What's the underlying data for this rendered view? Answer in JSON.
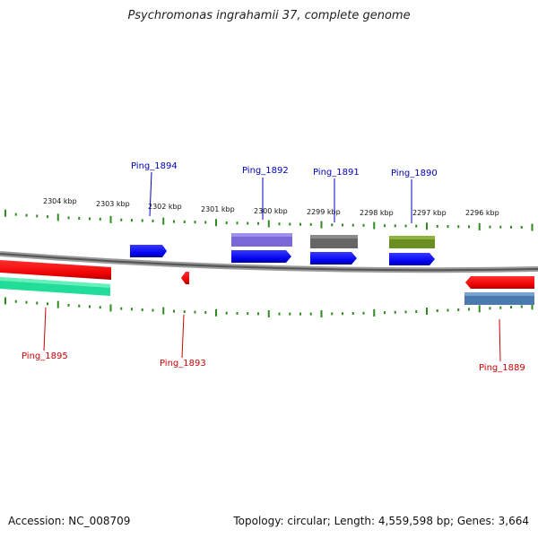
{
  "title": "Psychromonas ingrahamii 37, complete genome",
  "footer": {
    "accession": "Accession: NC_008709",
    "summary": "Topology: circular; Length: 4,559,598 bp; Genes: 3,664"
  },
  "scale_labels": [
    "2304 kbp",
    "2303 kbp",
    "2302 kbp",
    "2301 kbp",
    "2300 kbp",
    "2299 kbp",
    "2298 kbp",
    "2297 kbp",
    "2296 kbp"
  ],
  "genes": [
    {
      "id": "Ping_1894",
      "strand": "forward",
      "color": "#0000ee"
    },
    {
      "id": "Ping_1892",
      "strand": "forward",
      "color": "#0000ee",
      "product_color": "#7b68d8"
    },
    {
      "id": "Ping_1891",
      "strand": "forward",
      "color": "#0000ee",
      "product_color": "#666666"
    },
    {
      "id": "Ping_1890",
      "strand": "forward",
      "color": "#0000ee",
      "product_color": "#6b8e23"
    },
    {
      "id": "Ping_1895",
      "strand": "reverse",
      "color": "#ee0000",
      "product_color": "#22dd99"
    },
    {
      "id": "Ping_1893",
      "strand": "reverse",
      "color": "#ee0000"
    },
    {
      "id": "Ping_1889",
      "strand": "reverse",
      "color": "#ee0000",
      "product_color": "#4a7ab0"
    }
  ],
  "colors": {
    "forward_label": "#0000bb",
    "reverse_label": "#cc0000",
    "tick": "#2e8b1e",
    "backbone": "#888888"
  }
}
